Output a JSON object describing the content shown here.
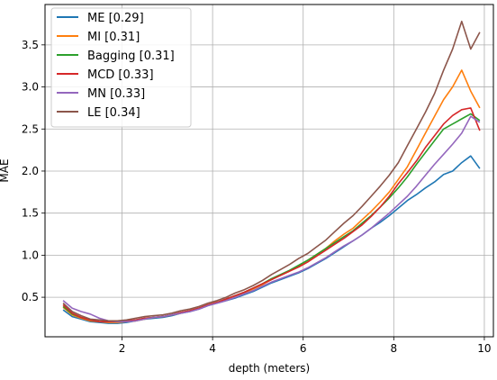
{
  "chart_data": {
    "type": "line",
    "xlabel": "depth (meters)",
    "ylabel": "MAE",
    "xlim": [
      0.3,
      10.2
    ],
    "ylim": [
      0.03,
      3.98
    ],
    "grid": true,
    "legend_position": "top-left",
    "x_ticks": [
      "2",
      "4",
      "6",
      "8",
      "10"
    ],
    "y_ticks": [
      "0.5",
      "1.0",
      "1.5",
      "2.0",
      "2.5",
      "3.0",
      "3.5"
    ],
    "x": [
      0.7,
      0.9,
      1.1,
      1.3,
      1.5,
      1.7,
      1.9,
      2.1,
      2.3,
      2.5,
      2.7,
      2.9,
      3.1,
      3.3,
      3.5,
      3.7,
      3.9,
      4.1,
      4.3,
      4.5,
      4.7,
      4.9,
      5.1,
      5.3,
      5.5,
      5.7,
      5.9,
      6.1,
      6.3,
      6.5,
      6.7,
      6.9,
      7.1,
      7.3,
      7.5,
      7.7,
      7.9,
      8.1,
      8.3,
      8.5,
      8.7,
      8.9,
      9.1,
      9.3,
      9.5,
      9.7,
      9.9
    ],
    "series": [
      {
        "name": "ME [0.29]",
        "color": "#1f77b4",
        "values": [
          0.35,
          0.27,
          0.24,
          0.21,
          0.2,
          0.19,
          0.19,
          0.2,
          0.22,
          0.24,
          0.25,
          0.26,
          0.28,
          0.31,
          0.33,
          0.36,
          0.4,
          0.43,
          0.46,
          0.49,
          0.53,
          0.57,
          0.62,
          0.67,
          0.71,
          0.75,
          0.79,
          0.84,
          0.9,
          0.96,
          1.03,
          1.1,
          1.17,
          1.24,
          1.32,
          1.39,
          1.47,
          1.56,
          1.65,
          1.72,
          1.8,
          1.87,
          1.96,
          2.0,
          2.1,
          2.18,
          2.03
        ]
      },
      {
        "name": "MI [0.31]",
        "color": "#ff7f0e",
        "values": [
          0.38,
          0.29,
          0.25,
          0.22,
          0.21,
          0.2,
          0.2,
          0.21,
          0.22,
          0.24,
          0.26,
          0.27,
          0.29,
          0.31,
          0.34,
          0.37,
          0.41,
          0.44,
          0.47,
          0.51,
          0.55,
          0.6,
          0.65,
          0.71,
          0.76,
          0.81,
          0.87,
          0.94,
          1.01,
          1.08,
          1.17,
          1.25,
          1.32,
          1.42,
          1.52,
          1.63,
          1.75,
          1.9,
          2.05,
          2.25,
          2.45,
          2.65,
          2.85,
          3.0,
          3.2,
          2.95,
          2.75
        ]
      },
      {
        "name": "Bagging [0.31]",
        "color": "#2ca02c",
        "values": [
          0.39,
          0.3,
          0.26,
          0.23,
          0.21,
          0.21,
          0.21,
          0.21,
          0.23,
          0.25,
          0.26,
          0.27,
          0.29,
          0.32,
          0.34,
          0.37,
          0.41,
          0.44,
          0.48,
          0.52,
          0.56,
          0.61,
          0.66,
          0.72,
          0.77,
          0.82,
          0.88,
          0.94,
          1.01,
          1.08,
          1.15,
          1.22,
          1.29,
          1.38,
          1.47,
          1.57,
          1.68,
          1.8,
          1.93,
          2.08,
          2.22,
          2.36,
          2.5,
          2.56,
          2.62,
          2.68,
          2.6
        ]
      },
      {
        "name": "MCD [0.33]",
        "color": "#d62728",
        "values": [
          0.41,
          0.31,
          0.26,
          0.23,
          0.21,
          0.21,
          0.21,
          0.22,
          0.23,
          0.25,
          0.26,
          0.27,
          0.29,
          0.32,
          0.34,
          0.37,
          0.41,
          0.44,
          0.48,
          0.52,
          0.56,
          0.61,
          0.66,
          0.71,
          0.76,
          0.81,
          0.86,
          0.92,
          0.99,
          1.06,
          1.13,
          1.2,
          1.28,
          1.36,
          1.46,
          1.57,
          1.7,
          1.85,
          1.98,
          2.12,
          2.28,
          2.42,
          2.56,
          2.66,
          2.73,
          2.75,
          2.48
        ]
      },
      {
        "name": "MN [0.33]",
        "color": "#9467bd",
        "values": [
          0.46,
          0.37,
          0.33,
          0.3,
          0.25,
          0.22,
          0.21,
          0.21,
          0.22,
          0.24,
          0.26,
          0.27,
          0.29,
          0.31,
          0.33,
          0.36,
          0.4,
          0.43,
          0.46,
          0.5,
          0.54,
          0.58,
          0.63,
          0.68,
          0.72,
          0.76,
          0.8,
          0.85,
          0.91,
          0.97,
          1.04,
          1.11,
          1.17,
          1.24,
          1.32,
          1.41,
          1.5,
          1.6,
          1.7,
          1.82,
          1.95,
          2.08,
          2.2,
          2.32,
          2.45,
          2.65,
          2.58
        ]
      },
      {
        "name": "LE [0.34]",
        "color": "#8c564b",
        "values": [
          0.43,
          0.33,
          0.28,
          0.24,
          0.23,
          0.22,
          0.22,
          0.23,
          0.25,
          0.27,
          0.28,
          0.29,
          0.31,
          0.34,
          0.36,
          0.39,
          0.43,
          0.46,
          0.5,
          0.55,
          0.59,
          0.64,
          0.7,
          0.77,
          0.83,
          0.89,
          0.96,
          1.02,
          1.1,
          1.18,
          1.28,
          1.38,
          1.47,
          1.58,
          1.7,
          1.82,
          1.95,
          2.1,
          2.3,
          2.5,
          2.7,
          2.92,
          3.2,
          3.45,
          3.78,
          3.45,
          3.65
        ]
      }
    ]
  }
}
